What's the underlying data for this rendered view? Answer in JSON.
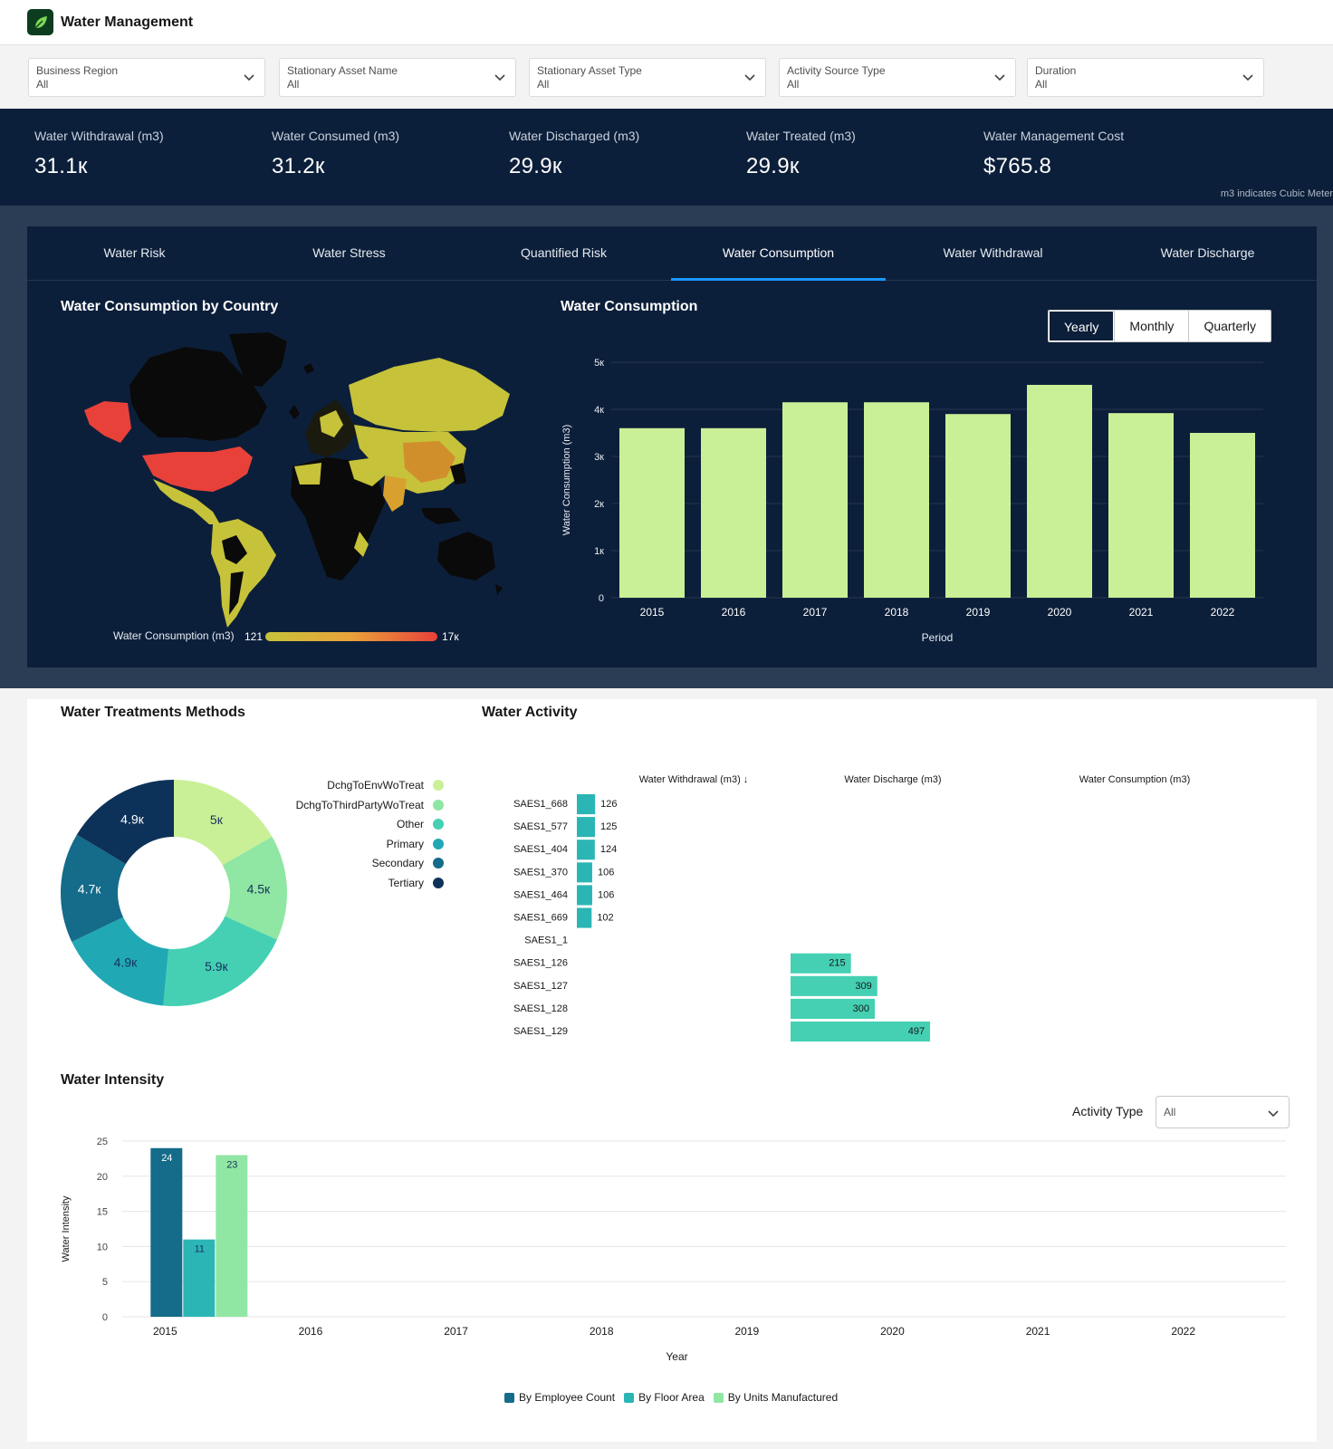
{
  "app": {
    "title": "Water Management",
    "logo_icon": "leaf-icon"
  },
  "filters": [
    {
      "label": "Business Region",
      "value": "All"
    },
    {
      "label": "Stationary Asset Name",
      "value": "All"
    },
    {
      "label": "Stationary Asset Type",
      "value": "All"
    },
    {
      "label": "Activity Source Type",
      "value": "All"
    },
    {
      "label": "Duration",
      "value": "All"
    }
  ],
  "kpis": [
    {
      "label": "Water Withdrawal (m3)",
      "value": "31.1к"
    },
    {
      "label": "Water Consumed (m3)",
      "value": "31.2к"
    },
    {
      "label": "Water Discharged (m3)",
      "value": "29.9к"
    },
    {
      "label": "Water Treated (m3)",
      "value": "29.9к"
    },
    {
      "label": "Water Management Cost",
      "value": "$765.8"
    }
  ],
  "kpi_note": "m3 indicates Cubic Meter",
  "tabs": [
    "Water Risk",
    "Water Stress",
    "Quantified Risk",
    "Water Consumption",
    "Water Withdrawal",
    "Water Discharge"
  ],
  "active_tab": "Water Consumption",
  "map_panel": {
    "title": "Water Consumption by Country",
    "legend_label": "Water Consumption (m3)",
    "legend_min": "121",
    "legend_max": "17к"
  },
  "consumption_panel": {
    "title": "Water Consumption",
    "period_options": [
      "Yearly",
      "Monthly",
      "Quarterly"
    ],
    "selected_period": "Yearly"
  },
  "treatments_title": "Water Treatments Methods",
  "activity_title": "Water Activity",
  "intensity_title": "Water Intensity",
  "activity_type": {
    "label": "Activity Type",
    "value": "All"
  },
  "colors": {
    "dark_bg": "#0c1f3a",
    "bar_green": "#c9f096",
    "teal": "#2cb5b5",
    "teal_light": "#45d0b3",
    "navy": "#0d3259",
    "usa_red": "#e8413a"
  },
  "chart_data": [
    {
      "type": "bar",
      "title": "Water Consumption",
      "categories": [
        "2015",
        "2016",
        "2017",
        "2018",
        "2019",
        "2020",
        "2021",
        "2022"
      ],
      "values": [
        3600,
        3600,
        4150,
        4150,
        3900,
        4520,
        3920,
        3500
      ],
      "xlabel": "Period",
      "ylabel": "Water Consumption (m3)",
      "ylim": [
        0,
        5000
      ],
      "yticks": [
        "0",
        "1к",
        "2к",
        "3к",
        "4к",
        "5к"
      ]
    },
    {
      "type": "pie",
      "title": "Water Treatments Methods",
      "labels": [
        "DchgToEnvWoTreat",
        "DchgToThirdPartyWoTreat",
        "Other",
        "Primary",
        "Secondary",
        "Tertiary"
      ],
      "values": [
        5000,
        4500,
        5900,
        4900,
        4700,
        4900
      ],
      "display_values": [
        "5к",
        "4.5к",
        "5.9к",
        "4.9к",
        "4.7к",
        "4.9к"
      ],
      "colors": [
        "#c9f096",
        "#90e6a3",
        "#45d0b3",
        "#20a9b4",
        "#146b8a",
        "#0d3259"
      ]
    },
    {
      "type": "bar",
      "title": "Water Activity",
      "columns": [
        "Water Withdrawal (m3) ↓",
        "Water Discharge (m3)",
        "Water Consumption (m3)"
      ],
      "categories": [
        "SAES1_668",
        "SAES1_577",
        "SAES1_404",
        "SAES1_370",
        "SAES1_464",
        "SAES1_669",
        "SAES1_1",
        "SAES1_126",
        "SAES1_127",
        "SAES1_128",
        "SAES1_129"
      ],
      "series": [
        {
          "name": "Water Withdrawal (m3)",
          "values": [
            126,
            125,
            124,
            106,
            106,
            102,
            null,
            null,
            null,
            null,
            null
          ]
        },
        {
          "name": "Water Discharge (m3)",
          "values": [
            null,
            null,
            null,
            null,
            null,
            null,
            null,
            215,
            309,
            300,
            497
          ]
        },
        {
          "name": "Water Consumption (m3)",
          "values": [
            null,
            null,
            null,
            null,
            null,
            null,
            null,
            null,
            null,
            null,
            null
          ]
        }
      ]
    },
    {
      "type": "bar",
      "title": "Water Intensity",
      "categories": [
        "2015",
        "2016",
        "2017",
        "2018",
        "2019",
        "2020",
        "2021",
        "2022"
      ],
      "series": [
        {
          "name": "By Employee Count",
          "values": [
            24,
            null,
            null,
            null,
            null,
            null,
            null,
            null
          ]
        },
        {
          "name": "By Floor Area",
          "values": [
            11,
            null,
            null,
            null,
            null,
            null,
            null,
            null
          ]
        },
        {
          "name": "By Units Manufactured",
          "values": [
            23,
            null,
            null,
            null,
            null,
            null,
            null,
            null
          ]
        }
      ],
      "xlabel": "Year",
      "ylabel": "Water Intensity",
      "ylim": [
        0,
        25
      ],
      "yticks": [
        "0",
        "5",
        "10",
        "15",
        "20",
        "25"
      ]
    }
  ]
}
